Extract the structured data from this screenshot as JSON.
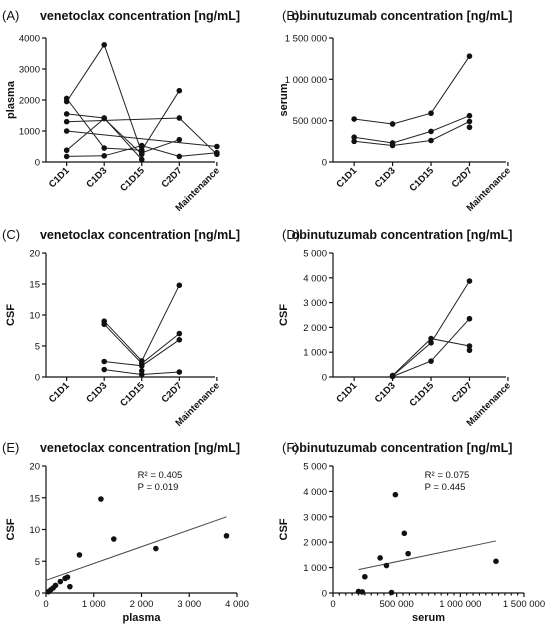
{
  "colors": {
    "ink": "#111111",
    "line": "#222222"
  },
  "chart_data": [
    {
      "id": "A",
      "letter": "(A)",
      "type": "line",
      "title": "venetoclax concentration [ng/mL]",
      "ylabel": "plasma",
      "xlabel": "",
      "categories": [
        "C1D1",
        "C1D3",
        "C1D15",
        "C2D7",
        "Maintenance"
      ],
      "ylim": [
        0,
        4000
      ],
      "yticks": [
        0,
        1000,
        2000,
        3000,
        4000
      ],
      "ytick_labels": [
        "0",
        "1000",
        "2000",
        "3000",
        "4000"
      ],
      "series": [
        {
          "values": [
            2050,
            450,
            380,
            2300,
            null
          ]
        },
        {
          "values": [
            1950,
            3780,
            300,
            720,
            null
          ]
        },
        {
          "values": [
            1550,
            1420,
            80,
            null,
            null
          ]
        },
        {
          "values": [
            380,
            1400,
            250,
            null,
            null
          ]
        },
        {
          "values": [
            180,
            200,
            530,
            180,
            300
          ]
        },
        {
          "values": [
            1300,
            null,
            null,
            1420,
            250
          ]
        },
        {
          "values": [
            null,
            null,
            480,
            null,
            null
          ]
        },
        {
          "values": [
            1000,
            null,
            null,
            null,
            500
          ]
        }
      ]
    },
    {
      "id": "B",
      "letter": "(B)",
      "type": "line",
      "title": "obinutuzumab concentration [ng/mL]",
      "ylabel": "serum",
      "xlabel": "",
      "categories": [
        "C1D1",
        "C1D3",
        "C1D15",
        "C2D7",
        "Maintenance"
      ],
      "ylim": [
        0,
        1500000
      ],
      "yticks": [
        0,
        500000,
        1000000,
        1500000
      ],
      "ytick_labels": [
        "0",
        "500 000",
        "1 000 000",
        "1 500 000"
      ],
      "series": [
        {
          "values": [
            520000,
            460000,
            590000,
            1280000,
            null
          ]
        },
        {
          "values": [
            300000,
            230000,
            370000,
            560000,
            null
          ]
        },
        {
          "values": [
            250000,
            200000,
            260000,
            490000,
            null
          ]
        },
        {
          "values": [
            null,
            null,
            null,
            420000,
            null
          ]
        }
      ]
    },
    {
      "id": "C",
      "letter": "(C)",
      "type": "line",
      "title": "venetoclax concentration [ng/mL]",
      "ylabel": "CSF",
      "xlabel": "",
      "categories": [
        "C1D1",
        "C1D3",
        "C1D15",
        "C2D7",
        "Maintenance"
      ],
      "ylim": [
        0,
        20
      ],
      "yticks": [
        0,
        5,
        10,
        15,
        20
      ],
      "ytick_labels": [
        "0",
        "5",
        "10",
        "15",
        "20"
      ],
      "series": [
        {
          "values": [
            null,
            9.0,
            2.6,
            14.8,
            null
          ]
        },
        {
          "values": [
            null,
            8.5,
            2.2,
            7.0,
            null
          ]
        },
        {
          "values": [
            null,
            2.5,
            1.8,
            6.0,
            null
          ]
        },
        {
          "values": [
            null,
            1.2,
            0.4,
            0.8,
            null
          ]
        },
        {
          "values": [
            null,
            null,
            1.0,
            null,
            null
          ]
        }
      ]
    },
    {
      "id": "D",
      "letter": "(D)",
      "type": "line",
      "title": "obinutuzumab concentration [ng/mL]",
      "ylabel": "CSF",
      "xlabel": "",
      "categories": [
        "C1D1",
        "C1D3",
        "C1D15",
        "C2D7",
        "Maintenance"
      ],
      "ylim": [
        0,
        5000
      ],
      "yticks": [
        0,
        1000,
        2000,
        3000,
        4000,
        5000
      ],
      "ytick_labels": [
        "0",
        "1 000",
        "2 000",
        "3 000",
        "4 000",
        "5 000"
      ],
      "series": [
        {
          "values": [
            null,
            60,
            1550,
            1250,
            null
          ]
        },
        {
          "values": [
            null,
            40,
            1380,
            3870,
            null
          ]
        },
        {
          "values": [
            null,
            20,
            640,
            2350,
            null
          ]
        },
        {
          "values": [
            null,
            null,
            null,
            1080,
            null
          ]
        }
      ]
    },
    {
      "id": "E",
      "letter": "(E)",
      "type": "scatter",
      "title": "venetoclax concentration [ng/mL]",
      "ylabel": "CSF",
      "xlabel": "plasma",
      "xlim": [
        0,
        4000
      ],
      "ylim": [
        0,
        20
      ],
      "xticks": [
        0,
        1000,
        2000,
        3000,
        4000
      ],
      "xtick_labels": [
        "0",
        "1 000",
        "2 000",
        "3 000",
        "4 000"
      ],
      "yticks": [
        0,
        5,
        10,
        15,
        20
      ],
      "ytick_labels": [
        "0",
        "5",
        "10",
        "15",
        "20"
      ],
      "r2_text": "R² = 0.405",
      "p_text": "P = 0.019",
      "points": [
        [
          50,
          0.2
        ],
        [
          100,
          0.5
        ],
        [
          150,
          0.8
        ],
        [
          200,
          1.2
        ],
        [
          300,
          1.8
        ],
        [
          400,
          2.3
        ],
        [
          450,
          2.5
        ],
        [
          500,
          1.0
        ],
        [
          700,
          6.0
        ],
        [
          1150,
          14.8
        ],
        [
          1420,
          8.5
        ],
        [
          2300,
          7.0
        ],
        [
          3780,
          9.0
        ]
      ],
      "fit": {
        "x": [
          0,
          3780
        ],
        "y": [
          2.0,
          12.0
        ]
      }
    },
    {
      "id": "F",
      "letter": "(F)",
      "type": "scatter",
      "title": "obinutuzumab concentration [ng/mL]",
      "ylabel": "CSF",
      "xlabel": "serum",
      "xlim": [
        0,
        1500000
      ],
      "ylim": [
        0,
        5000
      ],
      "xticks": [
        0,
        500000,
        1000000,
        1500000
      ],
      "xtick_labels": [
        "0",
        "500 000",
        "1 000 000",
        "1 500 000"
      ],
      "yticks": [
        0,
        1000,
        2000,
        3000,
        4000,
        5000
      ],
      "ytick_labels": [
        "0",
        "1 000",
        "2 000",
        "3 000",
        "4 000",
        "5 000"
      ],
      "r2_text": "R² = 0.075",
      "p_text": "P = 0.445",
      "points": [
        [
          200000,
          60
        ],
        [
          230000,
          40
        ],
        [
          250000,
          640
        ],
        [
          370000,
          1380
        ],
        [
          420000,
          1080
        ],
        [
          460000,
          20
        ],
        [
          490000,
          3870
        ],
        [
          560000,
          2350
        ],
        [
          590000,
          1550
        ],
        [
          1280000,
          1250
        ]
      ],
      "fit": {
        "x": [
          200000,
          1280000
        ],
        "y": [
          920,
          2050
        ]
      }
    }
  ]
}
